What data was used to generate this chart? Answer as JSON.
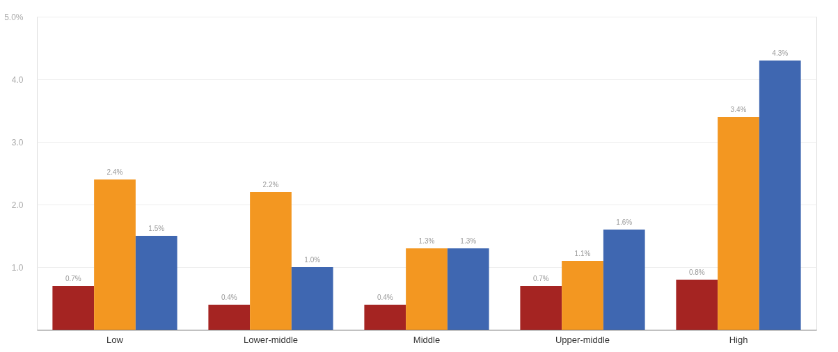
{
  "chart_data": {
    "type": "bar",
    "categories": [
      "Low",
      "Lower-middle",
      "Middle",
      "Upper-middle",
      "High"
    ],
    "series": [
      {
        "color": "#a52422",
        "values": [
          0.7,
          0.4,
          0.4,
          0.7,
          0.8
        ],
        "value_labels": [
          "0.7%",
          "0.4%",
          "0.4%",
          "0.7%",
          "0.8%"
        ]
      },
      {
        "color": "#f39721",
        "values": [
          2.4,
          2.2,
          1.3,
          1.1,
          3.4
        ],
        "value_labels": [
          "2.4%",
          "2.2%",
          "1.3%",
          "1.1%",
          "3.4%"
        ]
      },
      {
        "color": "#3f67b1",
        "values": [
          1.5,
          1.0,
          1.3,
          1.6,
          4.3
        ],
        "value_labels": [
          "1.5%",
          "1.0%",
          "1.3%",
          "1.6%",
          "4.3%"
        ]
      }
    ],
    "ylim": [
      0,
      5
    ],
    "yticks": [
      {
        "value": 1,
        "label": "1.0"
      },
      {
        "value": 2,
        "label": "2.0"
      },
      {
        "value": 3,
        "label": "3.0"
      },
      {
        "value": 4,
        "label": "4.0"
      },
      {
        "value": 5,
        "label": "5.0%"
      }
    ],
    "grid": "y",
    "legend": false
  }
}
